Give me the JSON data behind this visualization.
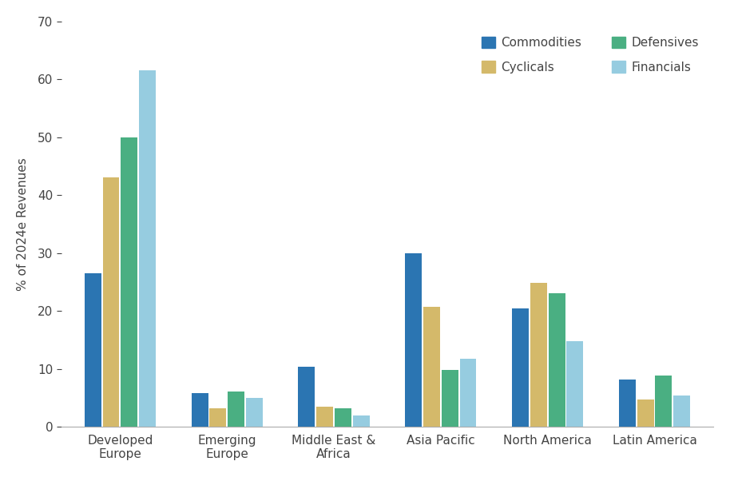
{
  "categories": [
    "Developed\nEurope",
    "Emerging\nEurope",
    "Middle East &\nAfrica",
    "Asia Pacific",
    "North America",
    "Latin America"
  ],
  "series": {
    "Commodities": [
      26.5,
      5.8,
      10.4,
      30.0,
      20.5,
      8.1
    ],
    "Cyclicals": [
      43.0,
      3.2,
      3.5,
      20.7,
      24.8,
      4.7
    ],
    "Defensives": [
      50.0,
      6.1,
      3.2,
      9.8,
      23.1,
      8.9
    ],
    "Financials": [
      61.5,
      5.0,
      1.9,
      11.8,
      14.8,
      5.4
    ]
  },
  "colors": {
    "Commodities": "#2B75B2",
    "Cyclicals": "#D4B96A",
    "Defensives": "#4AAF82",
    "Financials": "#96CCE0"
  },
  "ylabel": "% of 2024e Revenues",
  "ylim": [
    0,
    70
  ],
  "yticks": [
    0,
    10,
    20,
    30,
    40,
    50,
    60,
    70
  ],
  "background_color": "#FFFFFF",
  "bar_width": 0.17
}
